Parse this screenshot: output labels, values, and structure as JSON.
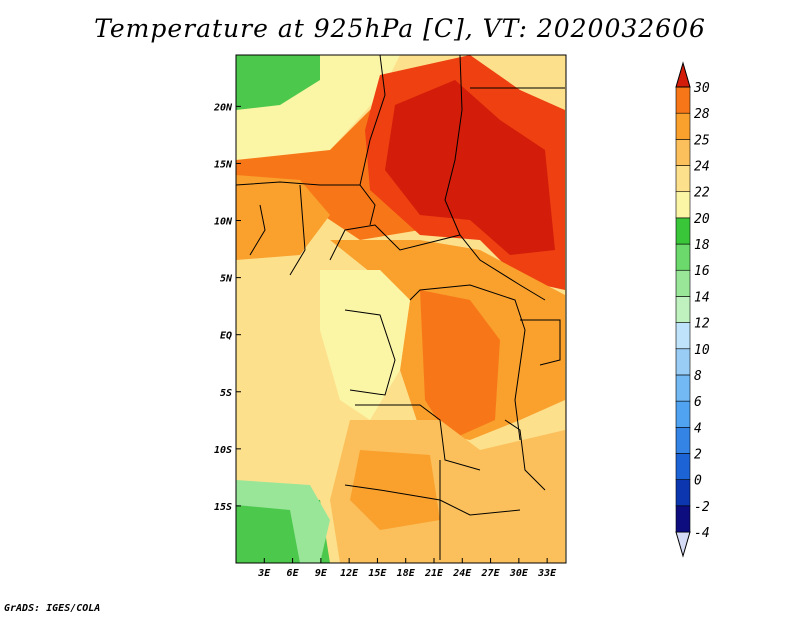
{
  "title": "Temperature at 925hPa [C], VT: 2020032606",
  "footer": "GrADS: IGES/COLA",
  "map": {
    "lon_range": [
      0,
      35
    ],
    "lat_range": [
      -20,
      24.5
    ],
    "lat_ticks": [
      {
        "value": 20,
        "label": "20N"
      },
      {
        "value": 15,
        "label": "15N"
      },
      {
        "value": 10,
        "label": "10N"
      },
      {
        "value": 5,
        "label": "5N"
      },
      {
        "value": 0,
        "label": "EQ"
      },
      {
        "value": -5,
        "label": "5S"
      },
      {
        "value": -10,
        "label": "10S"
      },
      {
        "value": -15,
        "label": "15S"
      }
    ],
    "lon_ticks": [
      {
        "value": 3,
        "label": "3E"
      },
      {
        "value": 6,
        "label": "6E"
      },
      {
        "value": 9,
        "label": "9E"
      },
      {
        "value": 12,
        "label": "12E"
      },
      {
        "value": 15,
        "label": "15E"
      },
      {
        "value": 18,
        "label": "18E"
      },
      {
        "value": 21,
        "label": "21E"
      },
      {
        "value": 24,
        "label": "24E"
      },
      {
        "value": 27,
        "label": "27E"
      },
      {
        "value": 30,
        "label": "30E"
      },
      {
        "value": 33,
        "label": "33E"
      }
    ]
  },
  "colorbar": {
    "levels": [
      "-4",
      "-2",
      "0",
      "2",
      "4",
      "6",
      "8",
      "10",
      "12",
      "14",
      "16",
      "18",
      "20",
      "22",
      "24",
      "25",
      "28",
      "30"
    ],
    "colors": [
      "#0d0d7f",
      "#0b36b0",
      "#1c63d6",
      "#3484e6",
      "#4fa3f0",
      "#73b9f4",
      "#99cdf6",
      "#bfe3fa",
      "#bff2bf",
      "#99e699",
      "#6bd96b",
      "#39c639",
      "#fbf5a6",
      "#fde08c",
      "#fbc05b",
      "#f9a02d",
      "#f77718",
      "#ee4010",
      "#d31c0a"
    ]
  },
  "colors": {
    "ocean_cool": "#4cc84c",
    "border": "#000000"
  }
}
